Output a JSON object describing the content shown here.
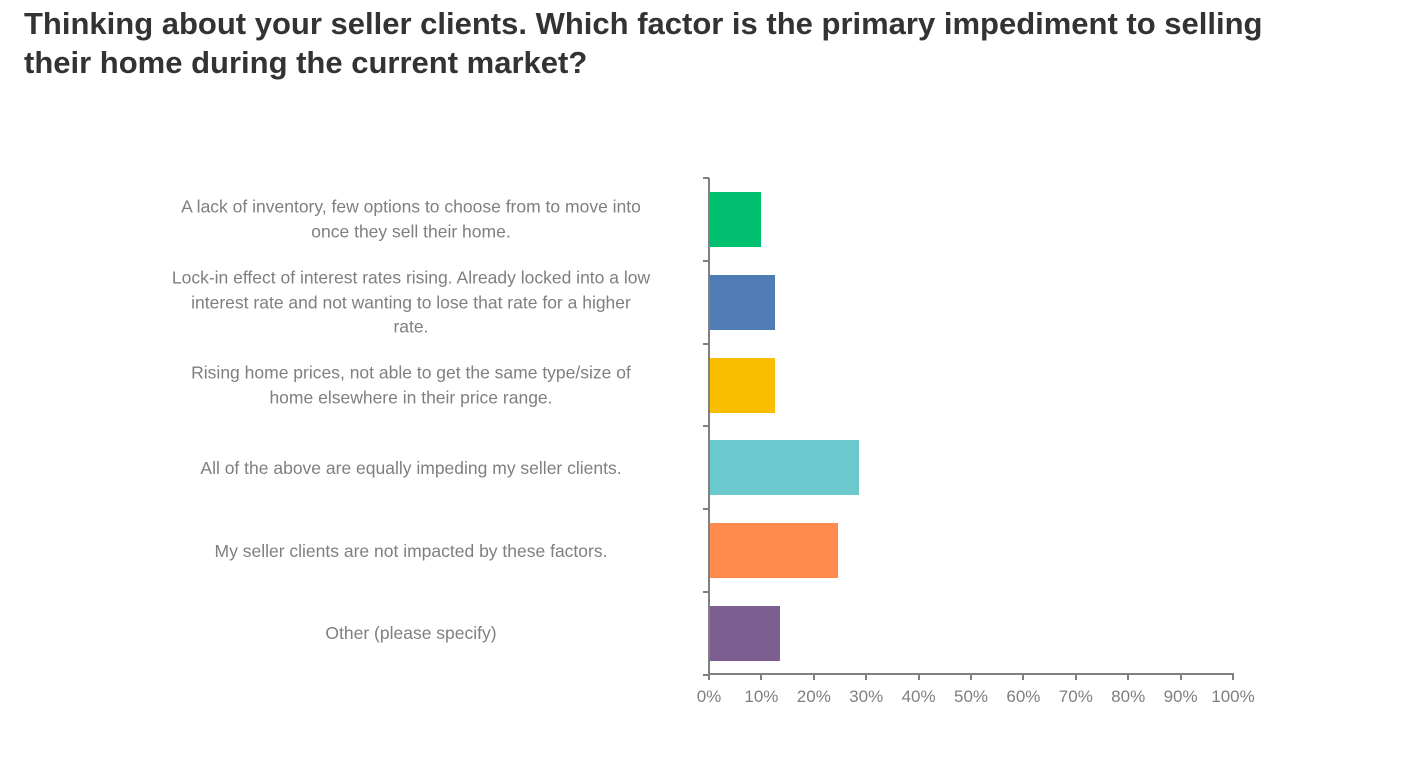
{
  "title": "Thinking about your seller clients. Which factor is the primary impediment to selling their home during the current market?",
  "chart_data": {
    "type": "bar",
    "orientation": "horizontal",
    "title": "Thinking about your seller clients. Which factor is the primary impediment to selling their home during the current market?",
    "xlabel": "",
    "ylabel": "",
    "xlim": [
      0,
      100
    ],
    "x_tick_labels": [
      "0%",
      "10%",
      "20%",
      "30%",
      "40%",
      "50%",
      "60%",
      "70%",
      "80%",
      "90%",
      "100%"
    ],
    "categories": [
      "A lack of inventory, few options to choose from to move into once they sell their home.",
      "Lock-in effect of interest rates rising. Already locked into a low interest rate and not wanting to lose that rate for a higher rate.",
      "Rising home prices, not able to get the same type/size of home elsewhere in their price range.",
      "All of the above are equally impeding my seller clients.",
      "My seller clients are not impacted by these factors.",
      "Other (please specify)"
    ],
    "values": [
      9.7,
      12.4,
      12.4,
      28.4,
      24.4,
      13.4
    ],
    "colors": [
      "#00bf6f",
      "#507cb6",
      "#f9be00",
      "#6bc8cd",
      "#ff8b4f",
      "#7d5e90"
    ],
    "grid": false,
    "legend": "none"
  },
  "bars": [
    {
      "label_lines": [
        "A lack of inventory, few options to choose from to move into",
        "once they sell their home."
      ],
      "value": 9.7,
      "color": "#00bf6f"
    },
    {
      "label_lines": [
        "Lock-in effect of interest rates rising. Already locked into a low",
        "interest rate and not wanting to lose that rate for a higher",
        "rate."
      ],
      "value": 12.4,
      "color": "#507cb6"
    },
    {
      "label_lines": [
        "Rising home prices, not able to get the same type/size of",
        "home elsewhere in their price range."
      ],
      "value": 12.4,
      "color": "#f9be00"
    },
    {
      "label_lines": [
        "All of the above are equally impeding my seller clients."
      ],
      "value": 28.4,
      "color": "#6bc8cd"
    },
    {
      "label_lines": [
        "My seller clients are not impacted by these factors."
      ],
      "value": 24.4,
      "color": "#ff8b4f"
    },
    {
      "label_lines": [
        "Other (please specify)"
      ],
      "value": 13.4,
      "color": "#7d5e90"
    }
  ]
}
